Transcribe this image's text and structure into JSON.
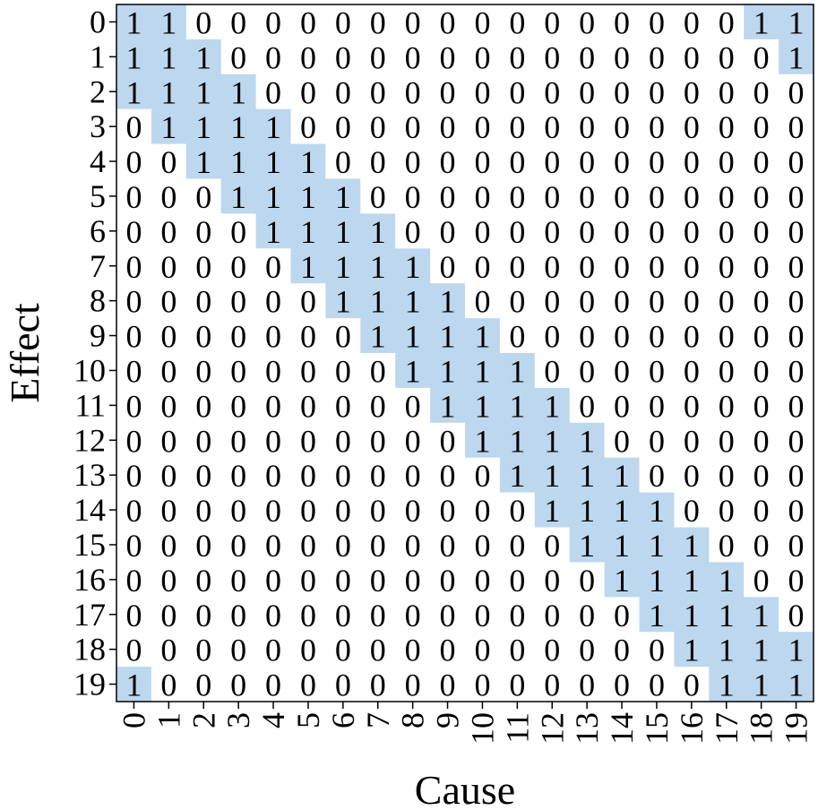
{
  "chart_data": {
    "type": "heatmap",
    "xlabel": "Cause",
    "ylabel": "Effect",
    "x_ticks": [
      "0",
      "1",
      "2",
      "3",
      "4",
      "5",
      "6",
      "7",
      "8",
      "9",
      "10",
      "11",
      "12",
      "13",
      "14",
      "15",
      "16",
      "17",
      "18",
      "19"
    ],
    "y_ticks": [
      "0",
      "1",
      "2",
      "3",
      "4",
      "5",
      "6",
      "7",
      "8",
      "9",
      "10",
      "11",
      "12",
      "13",
      "14",
      "15",
      "16",
      "17",
      "18",
      "19"
    ],
    "matrix": [
      [
        1,
        1,
        0,
        0,
        0,
        0,
        0,
        0,
        0,
        0,
        0,
        0,
        0,
        0,
        0,
        0,
        0,
        0,
        1,
        1
      ],
      [
        1,
        1,
        1,
        0,
        0,
        0,
        0,
        0,
        0,
        0,
        0,
        0,
        0,
        0,
        0,
        0,
        0,
        0,
        0,
        1
      ],
      [
        1,
        1,
        1,
        1,
        0,
        0,
        0,
        0,
        0,
        0,
        0,
        0,
        0,
        0,
        0,
        0,
        0,
        0,
        0,
        0
      ],
      [
        0,
        1,
        1,
        1,
        1,
        0,
        0,
        0,
        0,
        0,
        0,
        0,
        0,
        0,
        0,
        0,
        0,
        0,
        0,
        0
      ],
      [
        0,
        0,
        1,
        1,
        1,
        1,
        0,
        0,
        0,
        0,
        0,
        0,
        0,
        0,
        0,
        0,
        0,
        0,
        0,
        0
      ],
      [
        0,
        0,
        0,
        1,
        1,
        1,
        1,
        0,
        0,
        0,
        0,
        0,
        0,
        0,
        0,
        0,
        0,
        0,
        0,
        0
      ],
      [
        0,
        0,
        0,
        0,
        1,
        1,
        1,
        1,
        0,
        0,
        0,
        0,
        0,
        0,
        0,
        0,
        0,
        0,
        0,
        0
      ],
      [
        0,
        0,
        0,
        0,
        0,
        1,
        1,
        1,
        1,
        0,
        0,
        0,
        0,
        0,
        0,
        0,
        0,
        0,
        0,
        0
      ],
      [
        0,
        0,
        0,
        0,
        0,
        0,
        1,
        1,
        1,
        1,
        0,
        0,
        0,
        0,
        0,
        0,
        0,
        0,
        0,
        0
      ],
      [
        0,
        0,
        0,
        0,
        0,
        0,
        0,
        1,
        1,
        1,
        1,
        0,
        0,
        0,
        0,
        0,
        0,
        0,
        0,
        0
      ],
      [
        0,
        0,
        0,
        0,
        0,
        0,
        0,
        0,
        1,
        1,
        1,
        1,
        0,
        0,
        0,
        0,
        0,
        0,
        0,
        0
      ],
      [
        0,
        0,
        0,
        0,
        0,
        0,
        0,
        0,
        0,
        1,
        1,
        1,
        1,
        0,
        0,
        0,
        0,
        0,
        0,
        0
      ],
      [
        0,
        0,
        0,
        0,
        0,
        0,
        0,
        0,
        0,
        0,
        1,
        1,
        1,
        1,
        0,
        0,
        0,
        0,
        0,
        0
      ],
      [
        0,
        0,
        0,
        0,
        0,
        0,
        0,
        0,
        0,
        0,
        0,
        1,
        1,
        1,
        1,
        0,
        0,
        0,
        0,
        0
      ],
      [
        0,
        0,
        0,
        0,
        0,
        0,
        0,
        0,
        0,
        0,
        0,
        0,
        1,
        1,
        1,
        1,
        0,
        0,
        0,
        0
      ],
      [
        0,
        0,
        0,
        0,
        0,
        0,
        0,
        0,
        0,
        0,
        0,
        0,
        0,
        1,
        1,
        1,
        1,
        0,
        0,
        0
      ],
      [
        0,
        0,
        0,
        0,
        0,
        0,
        0,
        0,
        0,
        0,
        0,
        0,
        0,
        0,
        1,
        1,
        1,
        1,
        0,
        0
      ],
      [
        0,
        0,
        0,
        0,
        0,
        0,
        0,
        0,
        0,
        0,
        0,
        0,
        0,
        0,
        0,
        1,
        1,
        1,
        1,
        0
      ],
      [
        0,
        0,
        0,
        0,
        0,
        0,
        0,
        0,
        0,
        0,
        0,
        0,
        0,
        0,
        0,
        0,
        1,
        1,
        1,
        1
      ],
      [
        1,
        0,
        0,
        0,
        0,
        0,
        0,
        0,
        0,
        0,
        0,
        0,
        0,
        0,
        0,
        0,
        0,
        1,
        1,
        1
      ]
    ],
    "colors": {
      "one": "#bdd7ee",
      "zero": "#ffffff"
    },
    "legend": "none",
    "grid": false
  }
}
